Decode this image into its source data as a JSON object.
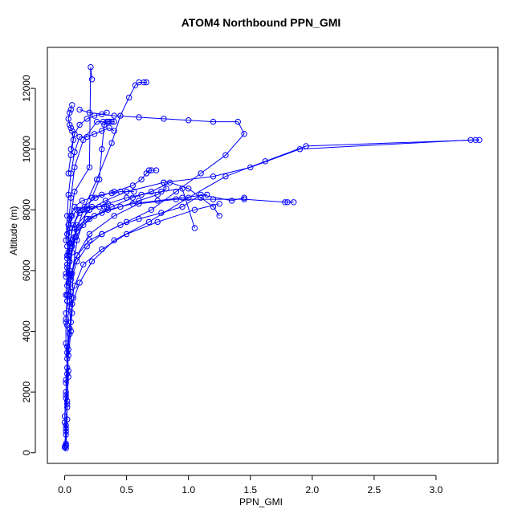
{
  "chart_data": {
    "type": "line",
    "title": "ATOM4 Northbound PPN_GMI",
    "xlabel": "PPN_GMI",
    "ylabel": "Altitude (m)",
    "xlim": [
      -0.14,
      3.5
    ],
    "ylim": [
      -350,
      13350
    ],
    "x_ticks": [
      0.0,
      0.5,
      1.0,
      1.5,
      2.0,
      2.5,
      3.0
    ],
    "x_tick_labels": [
      "0.0",
      "0.5",
      "1.0",
      "1.5",
      "2.0",
      "2.5",
      "3.0"
    ],
    "y_ticks": [
      0,
      2000,
      4000,
      6000,
      8000,
      10000,
      12000
    ],
    "y_tick_labels": [
      "0",
      "2000",
      "4000",
      "6000",
      "8000",
      "10000",
      "12000"
    ],
    "grid": false,
    "legend": "none",
    "color": "#0000ff",
    "marker": "open-circle",
    "series": [
      {
        "x": [
          0.01,
          0.01,
          0.0,
          0.01,
          0.02,
          0.01,
          0.01,
          0.02,
          0.03,
          0.02,
          0.03,
          0.05,
          0.08,
          0.2,
          0.21,
          0.22
        ],
        "y": [
          150,
          600,
          1200,
          2000,
          2800,
          3600,
          4300,
          5000,
          5600,
          6200,
          7000,
          7800,
          8600,
          9400,
          12700,
          12300
        ]
      },
      {
        "x": [
          0.0,
          0.01,
          0.02,
          0.01,
          0.02,
          0.04,
          0.06,
          0.05,
          0.04,
          0.06,
          0.1,
          0.2,
          0.33,
          0.5,
          0.8,
          1.2,
          1.5,
          1.9,
          3.28,
          3.35
        ],
        "y": [
          200,
          700,
          1500,
          2300,
          3100,
          3900,
          4600,
          5300,
          6000,
          6800,
          7500,
          8000,
          8300,
          8600,
          8900,
          9100,
          9400,
          10000,
          10300,
          10300
        ]
      },
      {
        "x": [
          0.01,
          0.0,
          0.01,
          0.02,
          0.03,
          0.02,
          0.04,
          0.05,
          0.1,
          0.2,
          0.4,
          0.6,
          0.9,
          1.2,
          1.45,
          1.78,
          1.8,
          1.85
        ],
        "y": [
          300,
          1000,
          1800,
          2600,
          3400,
          4200,
          5000,
          5800,
          6500,
          7200,
          7800,
          8200,
          8350,
          8350,
          8350,
          8250,
          8250,
          8250
        ]
      },
      {
        "x": [
          0.01,
          0.01,
          0.02,
          0.03,
          0.02,
          0.04,
          0.06,
          0.12,
          0.22,
          0.4,
          0.68,
          1.0,
          1.3,
          1.62,
          1.95,
          3.32
        ],
        "y": [
          250,
          900,
          1700,
          2500,
          3300,
          4100,
          4900,
          5600,
          6300,
          7000,
          7600,
          8400,
          9100,
          9600,
          10100,
          10300
        ]
      },
      {
        "x": [
          0.0,
          0.01,
          0.02,
          0.01,
          0.03,
          0.05,
          0.04,
          0.08,
          0.15,
          0.3,
          0.5,
          0.75,
          1.05,
          1.25
        ],
        "y": [
          180,
          800,
          1600,
          2400,
          3200,
          4000,
          4800,
          5500,
          6200,
          6700,
          7200,
          7600,
          8000,
          8200
        ]
      },
      {
        "x": [
          0.01,
          0.02,
          0.01,
          0.03,
          0.02,
          0.05,
          0.07,
          0.06,
          0.1,
          0.18,
          0.28,
          0.3,
          0.32,
          0.35
        ],
        "y": [
          220,
          1100,
          1900,
          2700,
          3500,
          4300,
          5100,
          5900,
          7000,
          8000,
          9000,
          10000,
          10800,
          10900
        ]
      },
      {
        "x": [
          0.02,
          0.03,
          0.05,
          0.08,
          0.15,
          0.26,
          0.31,
          0.34,
          0.36,
          0.38,
          0.4
        ],
        "y": [
          6500,
          7500,
          8400,
          9400,
          10300,
          10900,
          10900,
          10900,
          10900,
          10900,
          10900
        ]
      },
      {
        "x": [
          0.01,
          0.03,
          0.05,
          0.1,
          0.2,
          0.3,
          0.5,
          0.7,
          0.9,
          1.1,
          1.3,
          1.45,
          1.4,
          1.2,
          1.0,
          0.8,
          0.6,
          0.4,
          0.2,
          0.12
        ],
        "y": [
          4600,
          5200,
          5900,
          6500,
          7000,
          7200,
          7600,
          8000,
          8600,
          9200,
          9800,
          10500,
          10900,
          10900,
          10950,
          11000,
          11050,
          11100,
          11200,
          11300
        ]
      },
      {
        "x": [
          0.02,
          0.04,
          0.08,
          0.15,
          0.26,
          0.38,
          0.45,
          0.52,
          0.57,
          0.6,
          0.64,
          0.66
        ],
        "y": [
          5500,
          6300,
          7100,
          8000,
          9000,
          10200,
          11100,
          11700,
          12100,
          12200,
          12200,
          12200
        ]
      },
      {
        "x": [
          0.01,
          0.02,
          0.04,
          0.06,
          0.09,
          0.15,
          0.24,
          0.38,
          0.55,
          0.7,
          0.85,
          1.0,
          1.1,
          1.2,
          1.25
        ],
        "y": [
          4400,
          5200,
          6000,
          6600,
          7100,
          7500,
          7800,
          8100,
          8400,
          8600,
          8900,
          8700,
          8400,
          8100,
          7800
        ]
      },
      {
        "x": [
          0.02,
          0.05,
          0.1,
          0.18,
          0.3,
          0.45,
          0.6,
          0.78,
          0.95,
          1.1,
          1.35,
          1.45
        ],
        "y": [
          5000,
          5700,
          6300,
          6800,
          7200,
          7500,
          7700,
          7900,
          8100,
          8500,
          8300,
          8400
        ]
      },
      {
        "x": [
          0.01,
          0.03,
          0.06,
          0.12,
          0.25,
          0.4,
          0.55,
          0.62,
          0.66,
          0.68,
          0.7,
          0.74
        ],
        "y": [
          5800,
          6600,
          7400,
          8000,
          8400,
          8600,
          8800,
          9000,
          9200,
          9300,
          9300,
          9300
        ]
      },
      {
        "x": [
          0.01,
          0.02,
          0.04,
          0.07,
          0.12,
          0.2,
          0.35,
          0.5,
          0.62,
          0.78,
          0.95,
          1.05
        ],
        "y": [
          5200,
          6100,
          6900,
          7500,
          7900,
          8000,
          8200,
          8400,
          8500,
          8600,
          8700,
          7400
        ]
      },
      {
        "x": [
          0.02,
          0.04,
          0.06,
          0.1,
          0.16,
          0.22,
          0.28,
          0.32,
          0.34
        ],
        "y": [
          6800,
          7400,
          7800,
          8000,
          8100,
          8100,
          8100,
          8100,
          8100
        ]
      },
      {
        "x": [
          0.01,
          0.02,
          0.03,
          0.05,
          0.08,
          0.12,
          0.18,
          0.24,
          0.3,
          0.36,
          0.4
        ],
        "y": [
          7000,
          7800,
          8500,
          9200,
          9900,
          10400,
          10400,
          10500,
          10600,
          10700,
          10600
        ]
      },
      {
        "x": [
          0.03,
          0.05,
          0.07,
          0.06,
          0.05,
          0.04,
          0.03,
          0.04,
          0.05,
          0.06
        ],
        "y": [
          9200,
          9800,
          10300,
          10600,
          10700,
          10800,
          11000,
          11200,
          11300,
          11450
        ]
      },
      {
        "x": [
          0.05,
          0.08,
          0.12,
          0.18,
          0.24,
          0.3,
          0.34
        ],
        "y": [
          10000,
          10500,
          10800,
          11000,
          11100,
          11150,
          11200
        ]
      },
      {
        "x": [
          0.02,
          0.05,
          0.1,
          0.2,
          0.35,
          0.55,
          0.75,
          0.95,
          1.15
        ],
        "y": [
          6400,
          6900,
          7300,
          7700,
          8000,
          8200,
          8300,
          8400,
          8500
        ]
      },
      {
        "x": [
          0.01,
          0.03,
          0.06,
          0.1,
          0.18,
          0.3,
          0.45,
          0.6,
          0.75,
          0.82,
          0.8
        ],
        "y": [
          5900,
          6500,
          7000,
          7400,
          7700,
          7900,
          8100,
          8300,
          8500,
          8700,
          8900
        ]
      },
      {
        "x": [
          0.02,
          0.04,
          0.08,
          0.14,
          0.22,
          0.3,
          0.38,
          0.45,
          0.5,
          0.56
        ],
        "y": [
          7200,
          7700,
          8100,
          8300,
          8400,
          8500,
          8550,
          8600,
          8600,
          8600
        ]
      }
    ]
  }
}
